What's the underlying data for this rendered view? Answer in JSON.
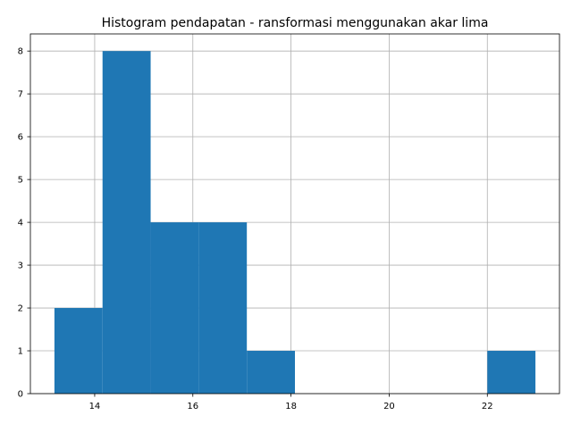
{
  "chart_data": {
    "type": "bar",
    "title": "Histogram pendapatan - ransformasi menggunakan akar lima",
    "xlabel": "",
    "ylabel": "",
    "bins": [
      {
        "start": 13.18,
        "end": 14.16,
        "count": 2
      },
      {
        "start": 14.16,
        "end": 15.14,
        "count": 8
      },
      {
        "start": 15.14,
        "end": 16.12,
        "count": 4
      },
      {
        "start": 16.12,
        "end": 17.1,
        "count": 4
      },
      {
        "start": 17.1,
        "end": 18.08,
        "count": 1
      },
      {
        "start": 18.08,
        "end": 19.06,
        "count": 0
      },
      {
        "start": 19.06,
        "end": 20.04,
        "count": 0
      },
      {
        "start": 20.04,
        "end": 21.02,
        "count": 0
      },
      {
        "start": 21.02,
        "end": 22.0,
        "count": 0
      },
      {
        "start": 22.0,
        "end": 22.98,
        "count": 1
      }
    ],
    "xlim": [
      12.69,
      23.47
    ],
    "ylim": [
      0,
      8.4
    ],
    "xticks": [
      14,
      16,
      18,
      20,
      22
    ],
    "yticks": [
      0,
      1,
      2,
      3,
      4,
      5,
      6,
      7,
      8
    ],
    "grid": true,
    "bar_color": "#1f77b4",
    "grid_color": "#b0b0b0"
  }
}
